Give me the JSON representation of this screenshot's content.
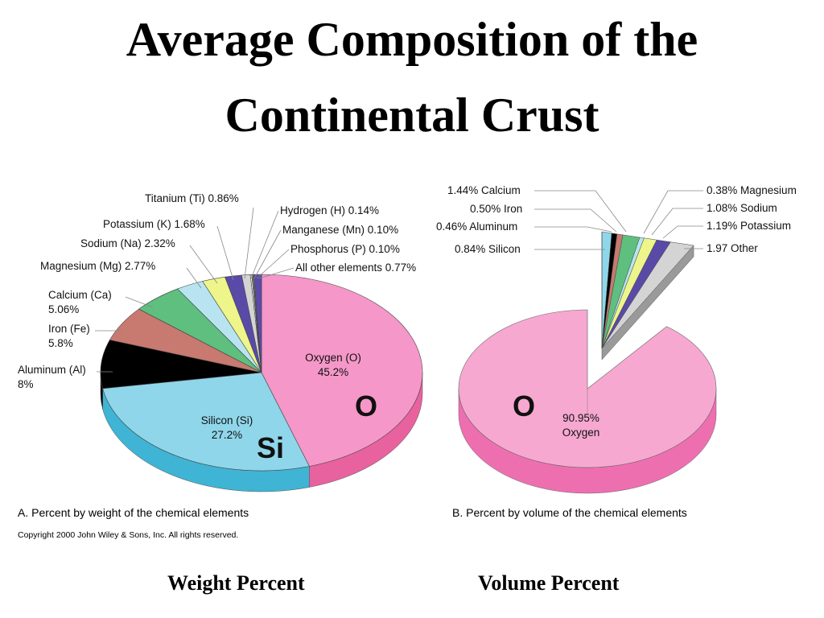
{
  "slide": {
    "title_line1": "Average Composition of the",
    "title_line2": "Continental Crust",
    "caption_weight": "Weight Percent",
    "caption_volume": "Volume Percent",
    "copyright": "Copyright 2000 John Wiley & Sons, Inc. All rights reserved."
  },
  "chart_data": [
    {
      "type": "pie",
      "caption": "A.   Percent by weight of the chemical elements",
      "big_labels": [
        "O",
        "Si"
      ],
      "slices": [
        {
          "label": "Oxygen (O)",
          "value_text": "45.2%",
          "value": 45.2,
          "color": "#f597c8",
          "side": "#e8629f"
        },
        {
          "label": "Silicon (Si)",
          "value_text": "27.2%",
          "value": 27.2,
          "color": "#8fd6ea",
          "side": "#3fb4d4"
        },
        {
          "label": "Aluminum (Al)",
          "value_text": "8%",
          "value": 8,
          "color": "#000000",
          "side": "#000000"
        },
        {
          "label": "Iron (Fe)",
          "value_text": "5.8%",
          "value": 5.8,
          "color": "#c87970",
          "side": "#a55a50"
        },
        {
          "label": "Calcium (Ca)",
          "value_text": "5.06%",
          "value": 5.06,
          "color": "#5fbf7f",
          "side": "#3c9a5b"
        },
        {
          "label": "Magnesium (Mg)",
          "value_text": "2.77%",
          "value": 2.77,
          "color": "#b7e4f0",
          "side": "#8cc9dc"
        },
        {
          "label": "Sodium (Na)",
          "value_text": "2.32%",
          "value": 2.32,
          "color": "#eef58a",
          "side": "#c8cf5a"
        },
        {
          "label": "Potassium (K)",
          "value_text": "1.68%",
          "value": 1.68,
          "color": "#5a4aa8",
          "side": "#3e3080"
        },
        {
          "label": "Titanium (Ti)",
          "value_text": "0.86%",
          "value": 0.86,
          "color": "#d4d4d4",
          "side": "#a8a8a8"
        },
        {
          "label": "Hydrogen (H)",
          "value_text": "0.14%",
          "value": 0.14,
          "color": "#ffffff",
          "side": "#cccccc"
        },
        {
          "label": "Manganese (Mn)",
          "value_text": "0.10%",
          "value": 0.1,
          "color": "#5fbf7f",
          "side": "#3c9a5b"
        },
        {
          "label": "Phosphorus (P)",
          "value_text": "0.10%",
          "value": 0.1,
          "color": "#c87970",
          "side": "#a55a50"
        },
        {
          "label": "All other elements",
          "value_text": "0.77%",
          "value": 0.77,
          "color": "#5a4aa8",
          "side": "#3e3080"
        }
      ]
    },
    {
      "type": "pie",
      "caption": "B.   Percent by volume of the chemical elements",
      "big_labels": [
        "O"
      ],
      "slices": [
        {
          "label": "Oxygen",
          "value_text": "90.95%",
          "value": 90.95,
          "color": "#f7a8d0",
          "side": "#ee6fb0"
        },
        {
          "label": "Silicon",
          "value_text": "0.84%",
          "value": 0.84,
          "color": "#8fd6ea",
          "side": "#3fb4d4"
        },
        {
          "label": "Aluminum",
          "value_text": "0.46%",
          "value": 0.46,
          "color": "#000000",
          "side": "#000000"
        },
        {
          "label": "Iron",
          "value_text": "0.50%",
          "value": 0.5,
          "color": "#c87970",
          "side": "#a55a50"
        },
        {
          "label": "Calcium",
          "value_text": "1.44%",
          "value": 1.44,
          "color": "#5fbf7f",
          "side": "#3c9a5b"
        },
        {
          "label": "Magnesium",
          "value_text": "0.38%",
          "value": 0.38,
          "color": "#b7e4f0",
          "side": "#8cc9dc"
        },
        {
          "label": "Sodium",
          "value_text": "1.08%",
          "value": 1.08,
          "color": "#eef58a",
          "side": "#c8cf5a"
        },
        {
          "label": "Potassium",
          "value_text": "1.19%",
          "value": 1.19,
          "color": "#5a4aa8",
          "side": "#3e3080"
        },
        {
          "label": "Other",
          "value_text": "1.97",
          "value": 1.97,
          "color": "#d4d4d4",
          "side": "#9a9a9a"
        }
      ]
    }
  ]
}
